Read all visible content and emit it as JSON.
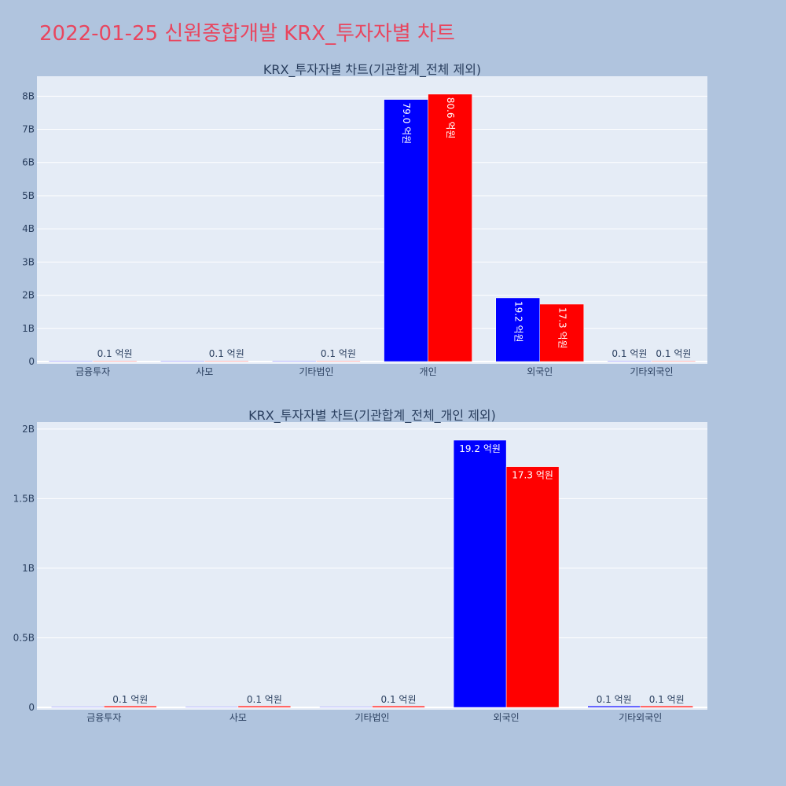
{
  "page": {
    "title": "2022-01-25 신원종합개발 KRX_투자자별 차트",
    "title_color": "#e8465f",
    "background": "#b0c4de",
    "plot_background": "#e5ecf6"
  },
  "chart_data": [
    {
      "type": "bar",
      "title": "KRX_투자자별 차트(기관합계_전체 제외)",
      "categories": [
        "금융투자",
        "사모",
        "기타법인",
        "개인",
        "외국인",
        "기타외국인"
      ],
      "xlabel": "",
      "ylabel": "",
      "ylim": [
        0,
        8.6
      ],
      "y_ticks": [
        0,
        1,
        2,
        3,
        4,
        5,
        6,
        7,
        8
      ],
      "y_tick_labels": [
        "0",
        "1B",
        "2B",
        "3B",
        "4B",
        "5B",
        "6B",
        "7B",
        "8B"
      ],
      "grid": true,
      "label_orientation": "vertical",
      "series": [
        {
          "color": "#0000ff",
          "values": [
            0,
            0,
            0,
            7.9,
            1.92,
            0.01
          ],
          "labels": [
            "",
            "",
            "",
            "79.0 억원",
            "19.2 억원",
            "0.1 억원"
          ]
        },
        {
          "color": "#ff0000",
          "values": [
            0.01,
            0.01,
            0.01,
            8.06,
            1.73,
            0.01
          ],
          "labels": [
            "0.1 억원",
            "0.1 억원",
            "0.1 억원",
            "80.6 억원",
            "17.3 억원",
            "0.1 억원"
          ]
        }
      ]
    },
    {
      "type": "bar",
      "title": "KRX_투자자별 차트(기관합계_전체_개인 제외)",
      "categories": [
        "금융투자",
        "사모",
        "기타법인",
        "외국인",
        "기타외국인"
      ],
      "xlabel": "",
      "ylabel": "",
      "ylim": [
        0,
        2.05
      ],
      "y_ticks": [
        0,
        0.5,
        1,
        1.5,
        2
      ],
      "y_tick_labels": [
        "0",
        "0.5B",
        "1B",
        "1.5B",
        "2B"
      ],
      "grid": true,
      "label_orientation": "horizontal",
      "series": [
        {
          "color": "#0000ff",
          "values": [
            0,
            0,
            0,
            1.92,
            0.01
          ],
          "labels": [
            "",
            "",
            "",
            "19.2 억원",
            "0.1 억원"
          ]
        },
        {
          "color": "#ff0000",
          "values": [
            0.01,
            0.01,
            0.01,
            1.73,
            0.01
          ],
          "labels": [
            "0.1 억원",
            "0.1 억원",
            "0.1 억원",
            "17.3 억원",
            "0.1 억원"
          ]
        }
      ]
    }
  ]
}
